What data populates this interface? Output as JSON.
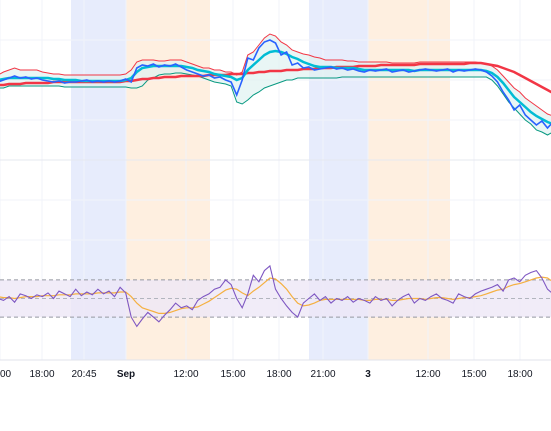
{
  "chart_data": {
    "type": "line",
    "x_tick_labels": [
      "00",
      "18:00",
      "20:45",
      "Sep",
      "12:00",
      "15:00",
      "18:00",
      "21:00",
      "3",
      "12:00",
      "15:00",
      "18:00"
    ],
    "bold_tick_labels": [
      "Sep",
      "3"
    ],
    "session_bands": [
      {
        "from_label": "20:45",
        "to_label": "Sep",
        "color": "#dfe6fb"
      },
      {
        "from_label": "Sep",
        "to_label": "12:00-mid",
        "color": "#fde9d6"
      },
      {
        "from_label": "21:00-pre",
        "to_label": "3",
        "color": "#dfe6fb"
      },
      {
        "from_label": "3",
        "to_label": "12:00-post",
        "color": "#fde9d6"
      }
    ],
    "colors": {
      "price": "#2962ff",
      "fast_ma": "#00bcd4",
      "slow_ma": "#f23645",
      "upper_band": "#f23645",
      "lower_band": "#089981",
      "band_fill": "#e0f2f1",
      "oscillator": "#7e57c2",
      "signal": "#f5b041",
      "osc_band_fill": "#ede7f6"
    },
    "grid": true,
    "legend": "none",
    "main_pane": {
      "price": [
        62,
        60,
        58,
        56,
        58,
        57,
        59,
        58,
        60,
        61,
        62,
        61,
        63,
        62,
        62,
        61,
        60,
        62,
        61,
        62,
        61,
        62,
        61,
        59,
        62,
        48,
        45,
        46,
        44,
        47,
        45,
        46,
        44,
        47,
        50,
        52,
        54,
        56,
        55,
        58,
        57,
        60,
        62,
        75,
        60,
        38,
        40,
        28,
        22,
        20,
        23,
        35,
        32,
        45,
        43,
        48,
        47,
        50,
        49,
        48,
        47,
        49,
        48,
        50,
        49,
        51,
        52,
        50,
        51,
        50,
        49,
        52,
        51,
        50,
        52,
        51,
        50,
        49,
        50,
        51,
        50,
        49,
        52,
        50,
        51,
        50,
        49,
        50,
        52,
        56,
        62,
        72,
        80,
        90,
        85,
        95,
        100,
        105,
        101,
        108,
        102
      ],
      "fast_ma": [
        60,
        59,
        58,
        58,
        58,
        58,
        58,
        58,
        58,
        58,
        59,
        59,
        60,
        60,
        60,
        61,
        61,
        61,
        61,
        61,
        61,
        61,
        61,
        60,
        58,
        52,
        48,
        47,
        46,
        46,
        46,
        46,
        46,
        46,
        47,
        48,
        50,
        51,
        52,
        54,
        55,
        56,
        57,
        60,
        58,
        50,
        45,
        40,
        35,
        32,
        31,
        32,
        34,
        37,
        39,
        42,
        44,
        46,
        47,
        47,
        47,
        48,
        48,
        48,
        48,
        49,
        50,
        50,
        50,
        50,
        50,
        50,
        50,
        50,
        50,
        51,
        50,
        50,
        50,
        50,
        50,
        50,
        50,
        50,
        50,
        50,
        50,
        50,
        51,
        53,
        57,
        63,
        70,
        77,
        82,
        87,
        92,
        96,
        99,
        102,
        104
      ],
      "slow_ma": [
        65,
        65,
        64,
        64,
        64,
        63,
        63,
        63,
        63,
        63,
        62,
        62,
        62,
        62,
        62,
        62,
        62,
        62,
        62,
        62,
        62,
        62,
        62,
        61,
        61,
        60,
        59,
        59,
        58,
        58,
        57,
        57,
        57,
        56,
        56,
        56,
        56,
        56,
        55,
        55,
        55,
        55,
        54,
        54,
        54,
        53,
        53,
        52,
        52,
        51,
        51,
        51,
        50,
        50,
        50,
        49,
        49,
        49,
        48,
        48,
        48,
        47,
        47,
        47,
        47,
        46,
        46,
        46,
        46,
        45,
        45,
        45,
        45,
        45,
        45,
        45,
        44,
        44,
        44,
        44,
        44,
        44,
        44,
        44,
        44,
        43,
        43,
        43,
        44,
        45,
        46,
        48,
        50,
        52,
        55,
        58,
        61,
        64,
        67,
        70,
        73
      ],
      "upper_band": [
        55,
        52,
        50,
        48,
        50,
        50,
        50,
        50,
        52,
        53,
        54,
        54,
        55,
        55,
        55,
        55,
        55,
        55,
        55,
        55,
        55,
        55,
        55,
        54,
        50,
        42,
        40,
        40,
        40,
        41,
        41,
        40,
        40,
        40,
        42,
        44,
        46,
        48,
        48,
        50,
        50,
        52,
        52,
        55,
        52,
        35,
        32,
        25,
        18,
        14,
        16,
        22,
        25,
        30,
        32,
        34,
        35,
        37,
        38,
        40,
        40,
        40,
        40,
        41,
        41,
        42,
        42,
        42,
        42,
        42,
        42,
        43,
        43,
        43,
        43,
        43,
        42,
        42,
        42,
        42,
        42,
        42,
        42,
        42,
        42,
        42,
        42,
        43,
        44,
        46,
        50,
        56,
        62,
        68,
        72,
        78,
        82,
        86,
        90,
        94,
        96
      ],
      "lower_band": [
        68,
        68,
        66,
        66,
        66,
        66,
        66,
        66,
        66,
        66,
        66,
        66,
        67,
        67,
        67,
        67,
        67,
        67,
        67,
        67,
        67,
        67,
        67,
        67,
        68,
        68,
        66,
        60,
        58,
        55,
        54,
        54,
        53,
        53,
        54,
        55,
        56,
        58,
        60,
        62,
        63,
        64,
        66,
        82,
        84,
        80,
        75,
        72,
        68,
        66,
        64,
        62,
        60,
        60,
        58,
        58,
        58,
        58,
        58,
        58,
        58,
        58,
        57,
        57,
        57,
        57,
        57,
        57,
        57,
        57,
        57,
        57,
        57,
        57,
        57,
        57,
        57,
        57,
        57,
        57,
        57,
        57,
        57,
        57,
        57,
        57,
        57,
        57,
        57,
        60,
        66,
        74,
        82,
        88,
        94,
        100,
        104,
        110,
        112,
        115,
        112
      ],
      "ylim": [
        0,
        160
      ]
    },
    "oscillator_pane": {
      "oscillator": [
        50,
        48,
        52,
        46,
        55,
        53,
        50,
        54,
        52,
        56,
        50,
        58,
        55,
        52,
        60,
        53,
        57,
        54,
        60,
        55,
        58,
        52,
        62,
        56,
        30,
        20,
        28,
        35,
        30,
        25,
        32,
        38,
        45,
        40,
        42,
        38,
        48,
        52,
        55,
        60,
        62,
        70,
        65,
        50,
        40,
        55,
        75,
        68,
        80,
        85,
        60,
        50,
        42,
        35,
        30,
        45,
        50,
        55,
        48,
        52,
        45,
        50,
        48,
        52,
        46,
        50,
        48,
        45,
        52,
        48,
        50,
        42,
        48,
        52,
        55,
        45,
        50,
        48,
        52,
        55,
        50,
        48,
        45,
        55,
        52,
        50,
        55,
        58,
        60,
        62,
        65,
        58,
        70,
        72,
        68,
        75,
        78,
        80,
        72,
        60,
        55
      ],
      "signal": [
        52,
        51,
        51,
        50,
        51,
        52,
        52,
        52,
        53,
        53,
        53,
        54,
        54,
        54,
        55,
        55,
        55,
        55,
        56,
        56,
        56,
        56,
        57,
        57,
        52,
        45,
        40,
        38,
        36,
        34,
        34,
        35,
        37,
        39,
        40,
        40,
        41,
        44,
        47,
        51,
        55,
        59,
        61,
        60,
        56,
        53,
        58,
        62,
        67,
        72,
        71,
        66,
        60,
        52,
        45,
        42,
        43,
        45,
        48,
        49,
        49,
        49,
        49,
        49,
        49,
        49,
        48,
        48,
        49,
        49,
        49,
        48,
        48,
        49,
        50,
        50,
        50,
        49,
        50,
        51,
        51,
        50,
        49,
        50,
        51,
        51,
        52,
        53,
        55,
        57,
        59,
        60,
        63,
        65,
        66,
        68,
        70,
        72,
        73,
        72,
        68
      ],
      "upper_level": 70,
      "lower_level": 30,
      "ylim": [
        0,
        100
      ]
    }
  }
}
